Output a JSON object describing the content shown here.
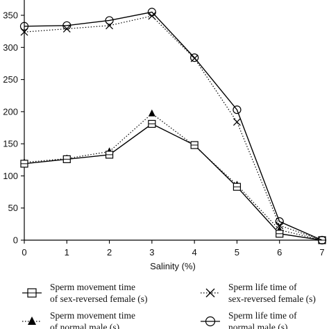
{
  "chart_data": {
    "type": "line",
    "xlabel": "Salinity (%)",
    "ylabel": "",
    "xlim": [
      0,
      7
    ],
    "ylim": [
      0,
      390
    ],
    "x_ticks": [
      "0",
      "1",
      "2",
      "3",
      "4",
      "5",
      "6",
      "7"
    ],
    "y_ticks": [
      "0",
      "50",
      "100",
      "150",
      "200",
      "250",
      "300",
      "350"
    ],
    "legend_placement": "bottom",
    "series": [
      {
        "name_line1": "Sperm movement time",
        "name_line2": "of sex-reversed female (s)",
        "marker": "square-open",
        "line": "solid",
        "x": [
          0,
          1,
          2,
          3,
          4,
          5,
          6,
          7
        ],
        "values": [
          119,
          126,
          133,
          181,
          148,
          83,
          10,
          0
        ]
      },
      {
        "name_line1": "Sperm movement time",
        "name_line2": "of normal male (s)",
        "marker": "triangle-filled",
        "line": "dotted",
        "x": [
          0,
          1,
          2,
          3,
          4,
          5,
          6,
          7
        ],
        "values": [
          121,
          127,
          138,
          197,
          147,
          86,
          16,
          0
        ]
      },
      {
        "name_line1": "Sperm life time of",
        "name_line2": "sex-reversed female (s)",
        "marker": "x",
        "line": "dotted",
        "x": [
          0,
          1,
          2,
          3,
          4,
          5,
          6,
          7
        ],
        "values": [
          324,
          329,
          334,
          349,
          283,
          184,
          23,
          0
        ]
      },
      {
        "name_line1": "Sperm life time of",
        "name_line2": "normal male (s)",
        "marker": "circle-open",
        "line": "solid",
        "x": [
          0,
          1,
          2,
          3,
          4,
          5,
          6,
          7
        ],
        "values": [
          333,
          334,
          342,
          355,
          284,
          203,
          29,
          0
        ]
      }
    ]
  }
}
